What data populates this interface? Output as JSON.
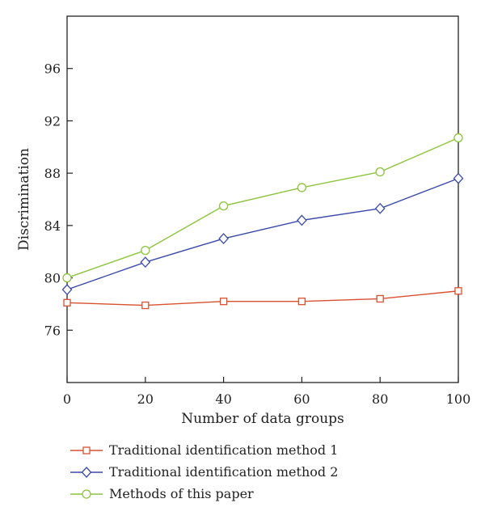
{
  "chart_data": {
    "type": "line",
    "x": [
      0,
      20,
      40,
      60,
      80,
      100
    ],
    "xlabel": "Number of data groups",
    "ylabel": "Discrimination",
    "xlim": [
      0,
      100
    ],
    "ylim": [
      72,
      100
    ],
    "xticks": [
      "0",
      "20",
      "40",
      "60",
      "80",
      "100"
    ],
    "yticks": [
      "76",
      "80",
      "84",
      "88",
      "92",
      "96"
    ],
    "grid": false,
    "legend_position": "bottom",
    "series": [
      {
        "name": "Traditional identification method 1",
        "marker": "square",
        "color": "#d9502f",
        "values": [
          78.1,
          77.9,
          78.2,
          78.2,
          78.4,
          79.0
        ]
      },
      {
        "name": "Traditional identification method 2",
        "marker": "diamond",
        "color": "#3b4aa8",
        "values": [
          79.1,
          81.2,
          83.0,
          84.4,
          85.3,
          87.6
        ]
      },
      {
        "name": "Methods of this paper",
        "marker": "circle",
        "color": "#8cc43c",
        "values": [
          80.0,
          82.1,
          85.5,
          86.9,
          88.1,
          90.7
        ]
      }
    ]
  }
}
